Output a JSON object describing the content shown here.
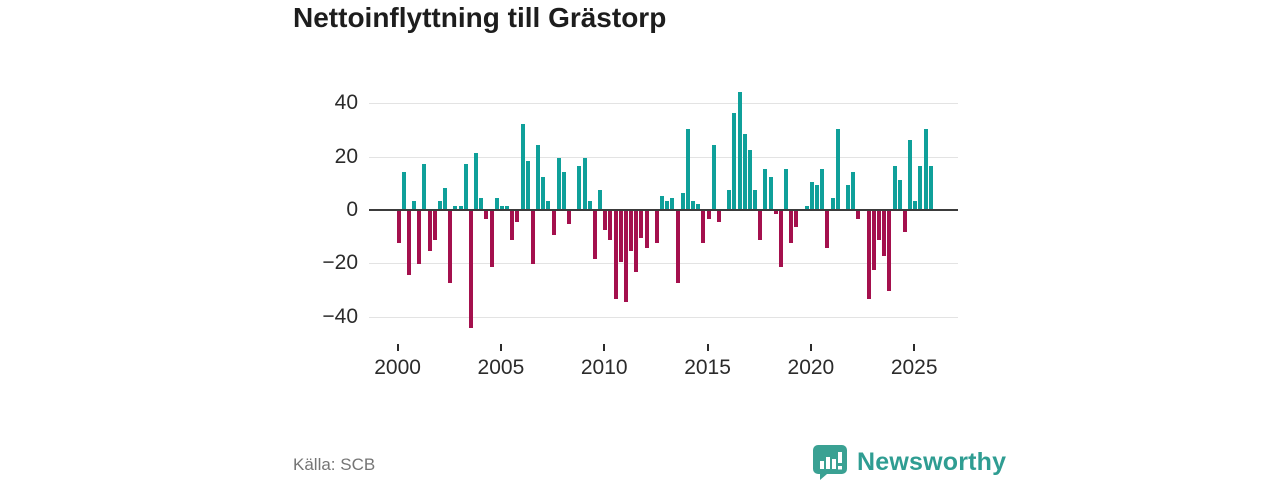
{
  "title": "Nettoinflyttning till Grästorp",
  "source": "Källa: SCB",
  "brand": {
    "name": "Newsworthy"
  },
  "chart_data": {
    "type": "bar",
    "title": "Nettoinflyttning till Grästorp",
    "period": "quarterly",
    "start_year": 2000,
    "x_ticks": [
      2000,
      2005,
      2010,
      2015,
      2020,
      2025
    ],
    "x_tick_labels": [
      "2000",
      "2005",
      "2010",
      "2015",
      "2020",
      "2025"
    ],
    "y_ticks": [
      40,
      20,
      0,
      -20,
      -40
    ],
    "y_tick_labels": [
      "40",
      "20",
      "0",
      "−20",
      "−40"
    ],
    "ylim": [
      -48,
      46
    ],
    "grid": true,
    "legend": "none",
    "values": [
      -12,
      14,
      -24,
      3,
      -20,
      17,
      -15,
      -11,
      3,
      8,
      -27,
      1,
      1,
      17,
      -44,
      21,
      4,
      -3,
      -21,
      4,
      1,
      1,
      -11,
      -4,
      32,
      18,
      -20,
      24,
      12,
      3,
      -9,
      19,
      14,
      -5,
      0,
      16,
      19,
      3,
      -18,
      7,
      -7,
      -11,
      -33,
      -19,
      -34,
      -15,
      -23,
      -10,
      -14,
      0,
      -12,
      5,
      3,
      4,
      -27,
      6,
      30,
      3,
      2,
      -12,
      -3,
      24,
      -4,
      0,
      7,
      36,
      44,
      28,
      22,
      7,
      -11,
      15,
      12,
      -1,
      -21,
      15,
      -12,
      -6,
      0,
      1,
      10,
      9,
      15,
      -14,
      4,
      30,
      0,
      9,
      14,
      -3,
      0,
      -33,
      -22,
      -11,
      -17,
      -30,
      16,
      11,
      -8,
      26,
      3,
      16,
      30,
      16
    ],
    "colors": {
      "positive": "#0fa09a",
      "negative": "#a4104d"
    }
  }
}
